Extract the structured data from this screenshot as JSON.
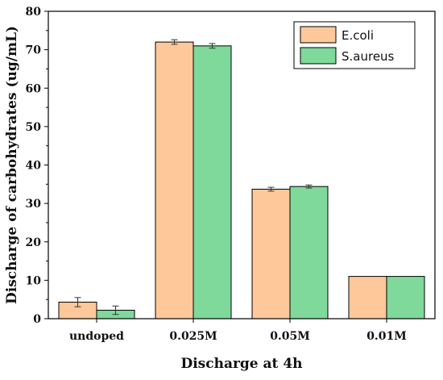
{
  "chart_data": {
    "type": "bar",
    "categories": [
      "undoped",
      "0.025M",
      "0.05M",
      "0.01M"
    ],
    "series": [
      {
        "name": "E.coli",
        "values": [
          4.3,
          72.0,
          33.7,
          11.0
        ],
        "errors": [
          1.2,
          0.6,
          0.5,
          0
        ],
        "color": "#FFC89A"
      },
      {
        "name": "S.aureus",
        "values": [
          2.2,
          71.0,
          34.4,
          11.0
        ],
        "errors": [
          1.1,
          0.6,
          0.4,
          0
        ],
        "color": "#7FD99A"
      }
    ],
    "title": "",
    "xlabel": "Discharge at 4h",
    "ylabel": "Discharge of carbohydrates (ug/mL)",
    "ylim": [
      0,
      80
    ],
    "yticks": [
      0,
      10,
      20,
      30,
      40,
      50,
      60,
      70,
      80
    ],
    "grid": false,
    "legend_position": "top-right"
  }
}
